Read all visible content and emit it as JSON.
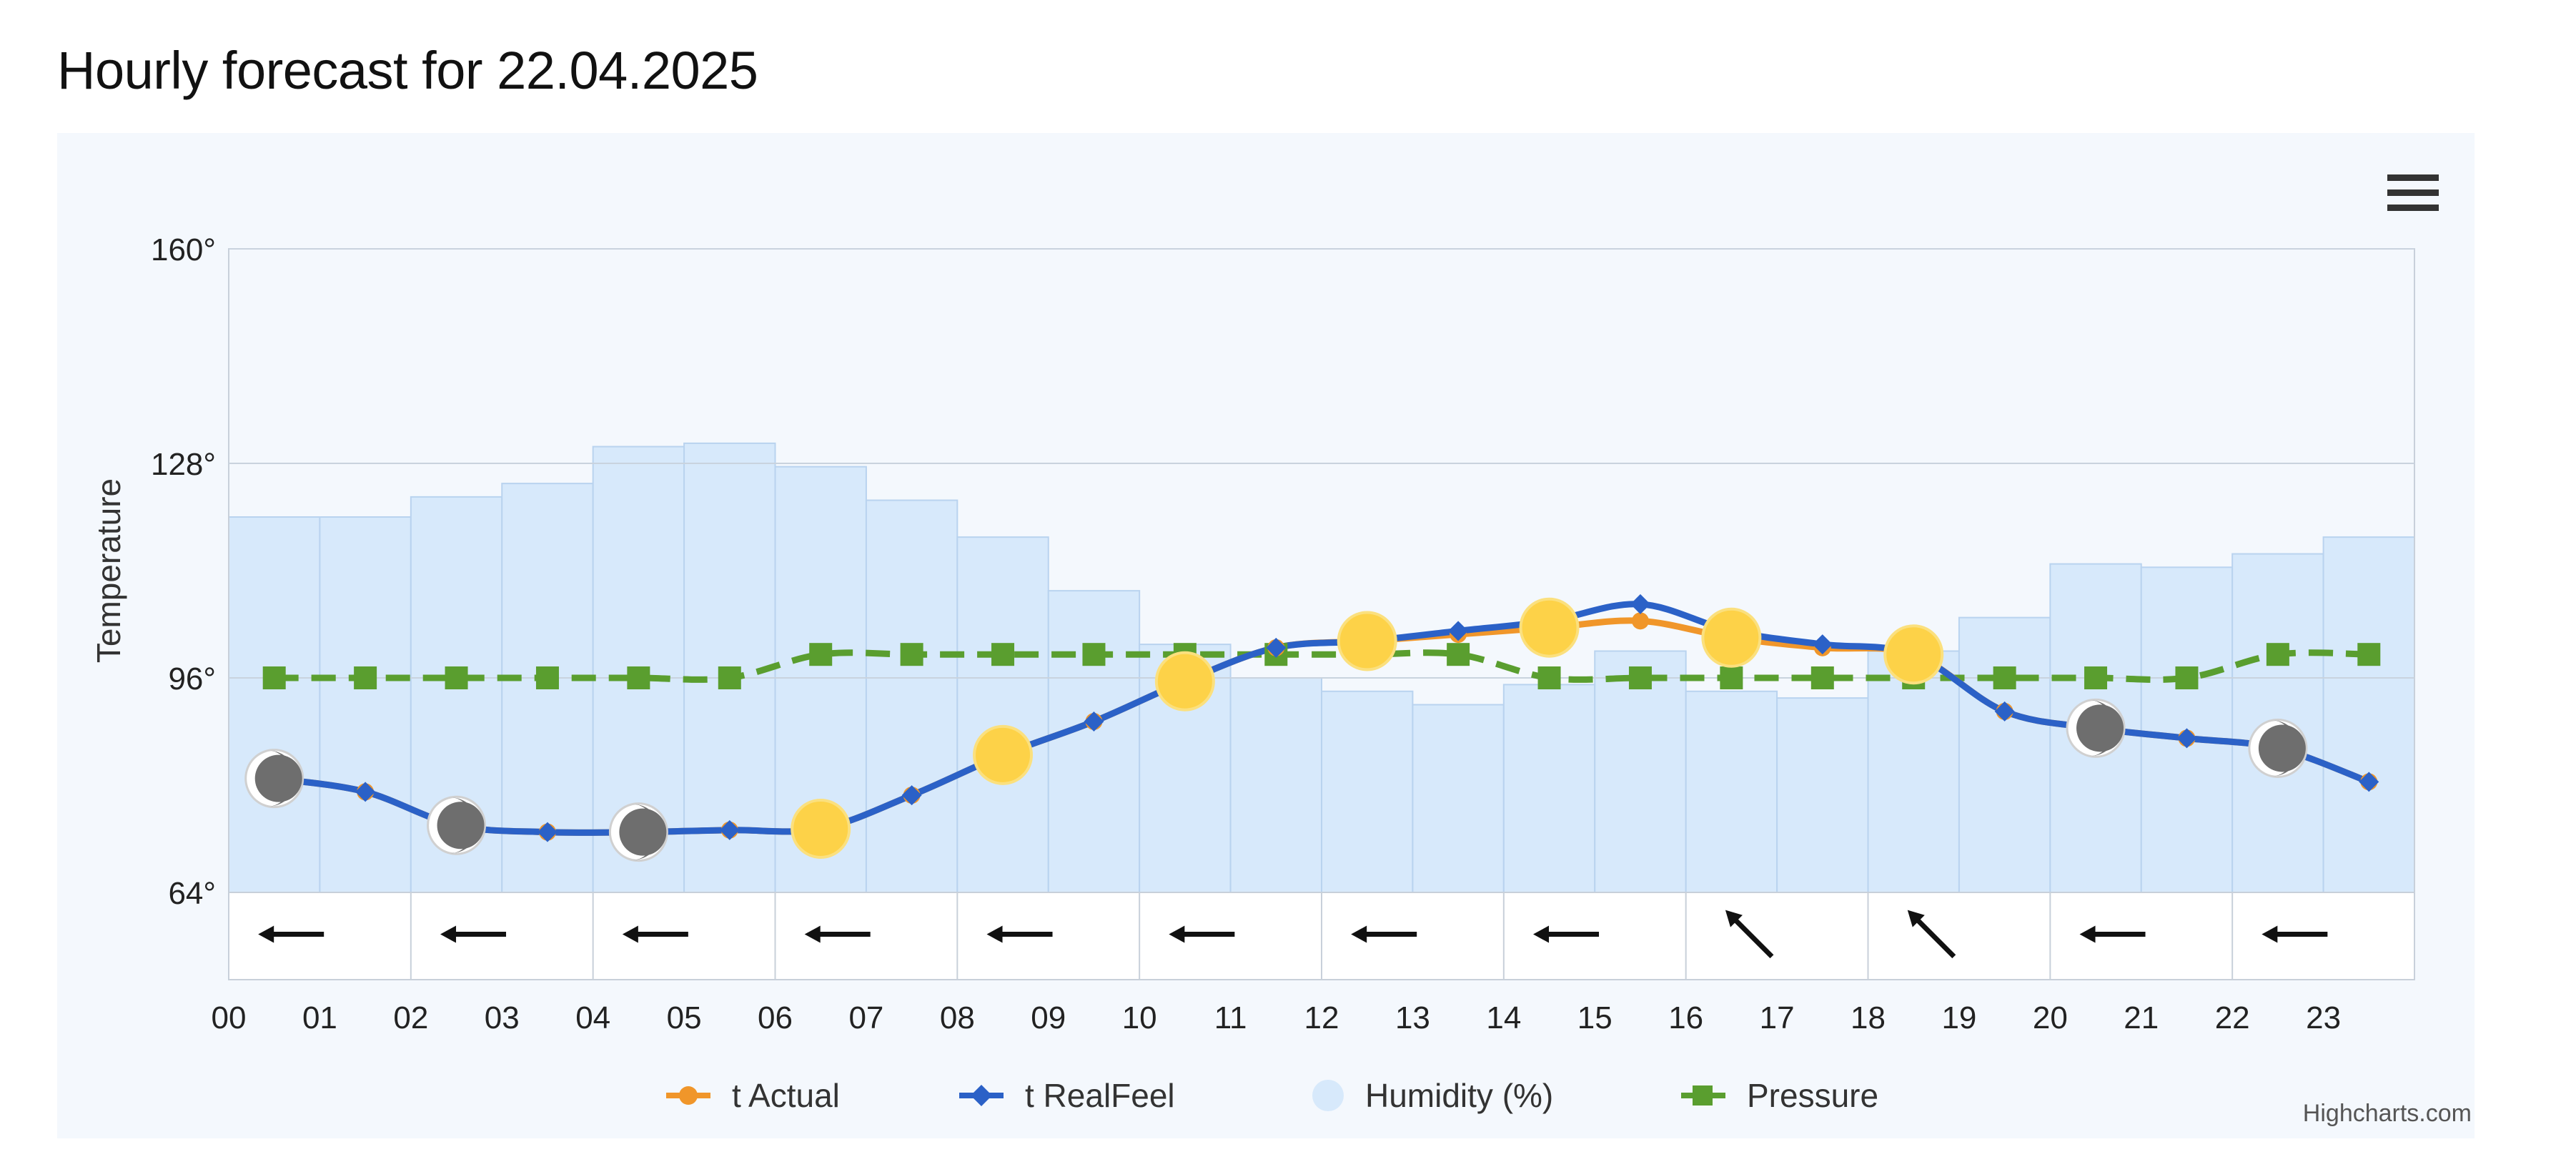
{
  "page": {
    "title": "Hourly forecast for 22.04.2025",
    "credits": "Highcharts.com",
    "menu_icon": "hamburger-menu-icon"
  },
  "colors": {
    "actual": "#f0962a",
    "realfeel": "#2b61c7",
    "humidity_fill": "#d7e9fb",
    "humidity_stroke": "#b9d3ef",
    "pressure": "#5a9e2f",
    "sun": "#fdd248",
    "moon": "#6e6e6e",
    "card_bg": "#f4f8fd"
  },
  "chart_data": {
    "type": "line",
    "title": "",
    "ylabel": "Temperature",
    "ylim": [
      64,
      160
    ],
    "yticks": [
      "64°",
      "96°",
      "128°",
      "160°"
    ],
    "grid": true,
    "legend_position": "bottom-center",
    "x_tick_labels": [
      "00",
      "01",
      "02",
      "03",
      "04",
      "05",
      "06",
      "07",
      "08",
      "09",
      "10",
      "11",
      "12",
      "13",
      "14",
      "15",
      "16",
      "17",
      "18",
      "19",
      "20",
      "21",
      "22",
      "23"
    ],
    "categories": [
      "00:30",
      "01:30",
      "02:30",
      "03:30",
      "04:30",
      "05:30",
      "06:30",
      "07:30",
      "08:30",
      "09:30",
      "10:30",
      "11:30",
      "12:30",
      "13:30",
      "14:30",
      "15:30",
      "16:30",
      "17:30",
      "18:30",
      "19:30",
      "20:30",
      "21:30",
      "22:30",
      "23:30"
    ],
    "series": [
      {
        "name": "t Actual",
        "kind": "line",
        "values": [
          81,
          79,
          74,
          73,
          73,
          73.3,
          73.5,
          78.5,
          84.5,
          89.5,
          95.5,
          100.5,
          101.5,
          102.5,
          103.5,
          104.5,
          102,
          100.5,
          99.5,
          91,
          88.5,
          87,
          85.5,
          80.5
        ]
      },
      {
        "name": "t RealFeel",
        "kind": "line",
        "values": [
          81,
          79,
          74,
          73,
          73,
          73.3,
          73.5,
          78.5,
          84.5,
          89.5,
          95.5,
          100.5,
          101.5,
          103,
          104.5,
          107,
          103,
          101,
          99.5,
          91,
          88.5,
          87,
          85.5,
          80.5
        ]
      },
      {
        "name": "Humidity (%)",
        "kind": "column",
        "values": [
          120,
          120,
          123,
          125,
          130.5,
          131,
          127.5,
          122.5,
          117,
          109,
          101,
          96,
          94,
          92,
          95,
          100,
          94,
          93,
          100,
          105,
          113,
          112.5,
          114.5,
          117
        ]
      },
      {
        "name": "Pressure",
        "kind": "dashed-line",
        "values": [
          96,
          96,
          96,
          96,
          96,
          96,
          99.5,
          99.5,
          99.5,
          99.5,
          99.5,
          99.5,
          99.5,
          99.5,
          96,
          96,
          96,
          96,
          96,
          96,
          96,
          96,
          99.5,
          99.5
        ]
      }
    ],
    "weather_icons": [
      "moon",
      "none",
      "moon",
      "none",
      "moon",
      "none",
      "sun",
      "none",
      "sun",
      "none",
      "sun",
      "none",
      "sun",
      "none",
      "sun",
      "none",
      "sun",
      "none",
      "sun",
      "none",
      "moon",
      "none",
      "moon",
      "none"
    ],
    "wind_directions": [
      "W",
      "W",
      "W",
      "W",
      "W",
      "W",
      "W",
      "W",
      "NW",
      "NW",
      "W",
      "W"
    ]
  }
}
